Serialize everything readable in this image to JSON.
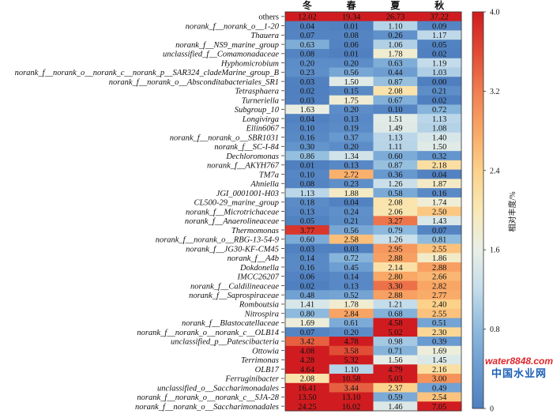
{
  "chart_data": {
    "type": "heatmap",
    "columns": [
      "冬",
      "春",
      "夏",
      "秋"
    ],
    "rows": [
      {
        "label": "others",
        "values": [
          12.02,
          19.34,
          26.73,
          37.22
        ]
      },
      {
        "label": "norank_f__norank_o__1-20",
        "values": [
          0.04,
          0.01,
          1.1,
          0.09
        ]
      },
      {
        "label": "Thauera",
        "values": [
          0.07,
          0.08,
          0.26,
          1.17
        ]
      },
      {
        "label": "norank_f__NS9_marine_group",
        "values": [
          0.63,
          0.06,
          1.06,
          0.05
        ]
      },
      {
        "label": "unclassified_f__Comamonadaceae",
        "values": [
          0.08,
          0.01,
          1.78,
          0.02
        ]
      },
      {
        "label": "Hyphomicrobium",
        "values": [
          0.2,
          0.2,
          0.63,
          1.19
        ]
      },
      {
        "label": "norank_f__norank_o__norank_c__norank_p__SAR324_cladeMarine_group_B",
        "values": [
          0.23,
          0.56,
          0.44,
          1.03
        ]
      },
      {
        "label": "norank_f__norank_o__Absconditabacteriales_SR1",
        "values": [
          0.03,
          1.5,
          0.87,
          0.0
        ]
      },
      {
        "label": "Tetrasphaera",
        "values": [
          0.02,
          0.15,
          2.08,
          0.21
        ]
      },
      {
        "label": "Turneriella",
        "values": [
          0.03,
          1.75,
          0.67,
          0.02
        ]
      },
      {
        "label": "Subgroup_10",
        "values": [
          1.63,
          0.2,
          0.1,
          0.72
        ]
      },
      {
        "label": "Longivirga",
        "values": [
          0.04,
          0.13,
          1.51,
          1.13
        ]
      },
      {
        "label": "Ellin6067",
        "values": [
          0.1,
          0.19,
          1.49,
          1.08
        ]
      },
      {
        "label": "norank_f__norank_o__SBR1031",
        "values": [
          0.16,
          0.37,
          1.13,
          1.4
        ]
      },
      {
        "label": "norank_f__SC-I-84",
        "values": [
          0.3,
          0.2,
          1.11,
          1.5
        ]
      },
      {
        "label": "Dechloromonas",
        "values": [
          0.86,
          1.34,
          0.6,
          0.32
        ]
      },
      {
        "label": "norank_f__AKYH767",
        "values": [
          0.01,
          0.13,
          0.87,
          2.18
        ]
      },
      {
        "label": "TM7a",
        "values": [
          0.1,
          2.72,
          0.36,
          0.04
        ]
      },
      {
        "label": "Ahniella",
        "values": [
          0.08,
          0.23,
          1.26,
          1.87
        ]
      },
      {
        "label": "JGI_0001001-H03",
        "values": [
          1.13,
          1.88,
          0.58,
          0.16
        ]
      },
      {
        "label": "CL500-29_marine_group",
        "values": [
          0.18,
          0.04,
          2.08,
          1.74
        ]
      },
      {
        "label": "norank_f__Microtrichaceae",
        "values": [
          0.13,
          0.24,
          2.06,
          2.5
        ]
      },
      {
        "label": "norank_f__Anaerolineaceae",
        "values": [
          0.05,
          0.21,
          3.27,
          1.43
        ]
      },
      {
        "label": "Thermomonas",
        "values": [
          3.77,
          0.56,
          0.79,
          0.07
        ]
      },
      {
        "label": "norank_f__norank_o__RBG-13-54-9",
        "values": [
          0.6,
          2.58,
          1.26,
          0.81
        ]
      },
      {
        "label": "norank_f__JG30-KF-CM45",
        "values": [
          0.03,
          0.03,
          2.95,
          2.55
        ]
      },
      {
        "label": "norank_f__A4b",
        "values": [
          0.14,
          0.72,
          2.88,
          1.86
        ]
      },
      {
        "label": "Dokdonella",
        "values": [
          0.16,
          0.45,
          2.14,
          2.88
        ]
      },
      {
        "label": "IMCC26207",
        "values": [
          0.06,
          0.14,
          2.8,
          2.66
        ]
      },
      {
        "label": "norank_f__Caldilineaceae",
        "values": [
          0.02,
          0.13,
          3.3,
          2.82
        ]
      },
      {
        "label": "norank_f__Saprospiraceae",
        "values": [
          0.48,
          0.52,
          2.88,
          2.77
        ]
      },
      {
        "label": "Romboutsia",
        "values": [
          1.41,
          1.78,
          1.21,
          2.4
        ]
      },
      {
        "label": "Nitrospira",
        "values": [
          0.8,
          2.84,
          0.68,
          2.55
        ]
      },
      {
        "label": "norank_f__Blastocatellaceae",
        "values": [
          1.69,
          0.61,
          4.58,
          0.51
        ]
      },
      {
        "label": "norank_f__norank_o__norank_c__OLB14",
        "values": [
          0.07,
          0.2,
          5.02,
          2.3
        ]
      },
      {
        "label": "unclassified_p__Patescibacteria",
        "values": [
          3.42,
          4.78,
          0.98,
          0.39
        ]
      },
      {
        "label": "Ottowia",
        "values": [
          4.08,
          3.58,
          0.71,
          1.69
        ]
      },
      {
        "label": "Terrimonas",
        "values": [
          4.28,
          5.32,
          1.56,
          1.45
        ]
      },
      {
        "label": "OLB17",
        "values": [
          4.64,
          1.1,
          4.79,
          2.16
        ]
      },
      {
        "label": "Ferruginibacter",
        "values": [
          2.08,
          10.58,
          5.03,
          3.0
        ]
      },
      {
        "label": "unclassified_o__Saccharimonadales",
        "values": [
          16.41,
          3.44,
          2.37,
          0.49
        ]
      },
      {
        "label": "norank_f__norank_o__norank_c__SJA-28",
        "values": [
          13.5,
          13.1,
          0.59,
          2.54
        ]
      },
      {
        "label": "norank_f__norank_o__Saccharimonadales",
        "values": [
          24.25,
          16.02,
          1.46,
          7.05
        ]
      }
    ],
    "colorbar": {
      "label": "相对丰度/%",
      "range": [
        0,
        4.0
      ],
      "ticks": [
        "4.0",
        "3.2",
        "2.4",
        "1.6",
        "0.8",
        "0"
      ],
      "colormap": [
        "#4f7fbf",
        "#6a9bd0",
        "#8dbadd",
        "#c4dcea",
        "#e9efe6",
        "#f9e8b6",
        "#fcd18a",
        "#f9a866",
        "#f07e50",
        "#e04a35",
        "#d01c20"
      ]
    }
  },
  "watermark": {
    "line1": "water8848.com",
    "line2": "中国水业网"
  }
}
